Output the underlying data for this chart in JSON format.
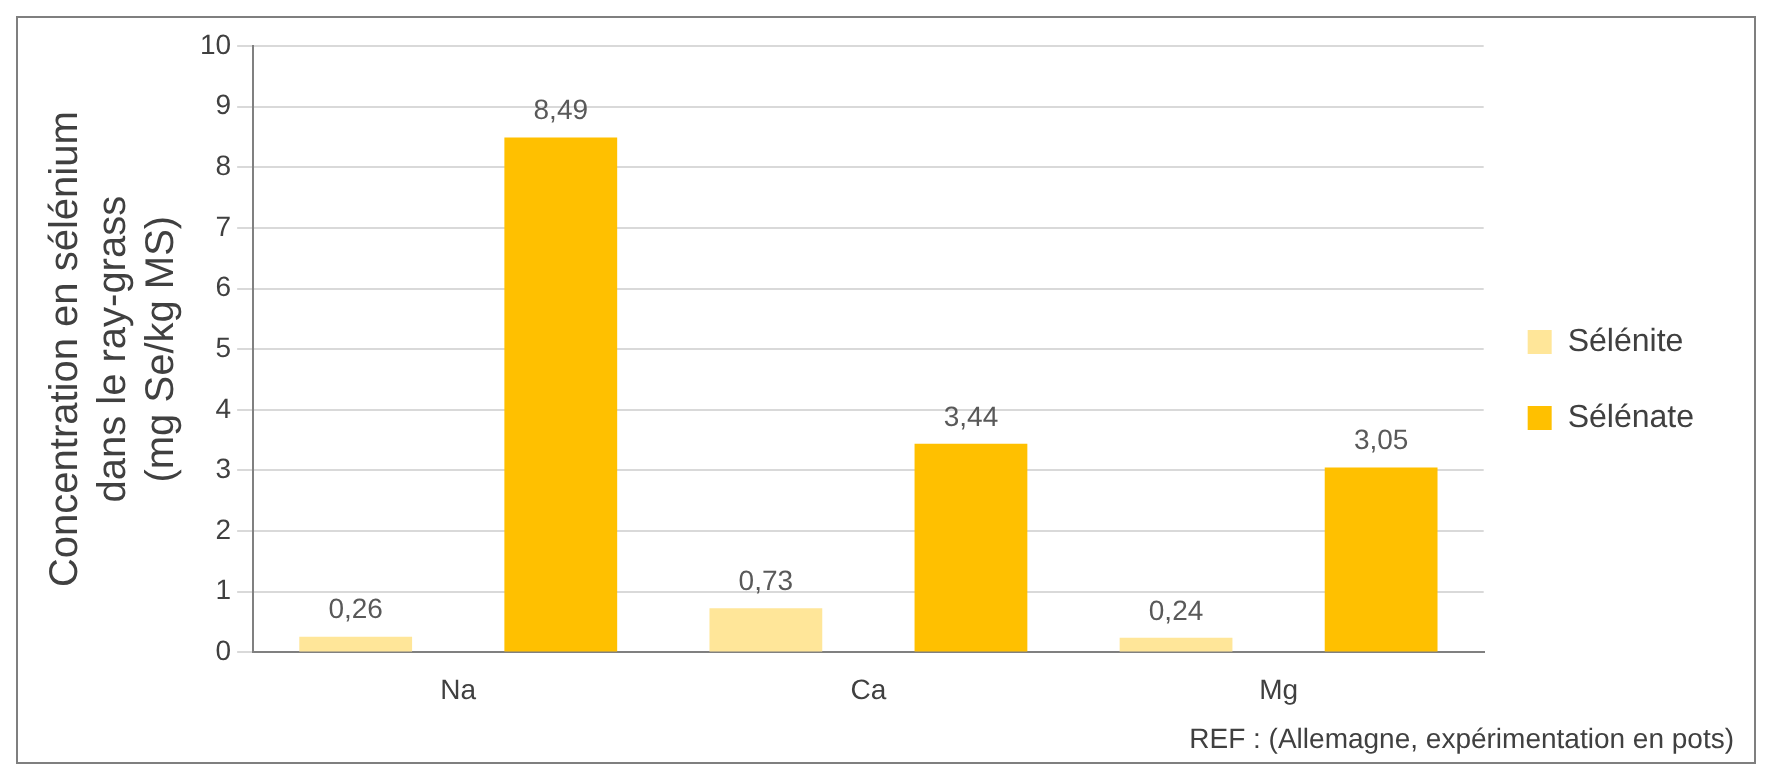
{
  "chart_data": {
    "type": "bar",
    "ylabel": "Concentration en sélénium\ndans le ray-grass\n(mg Se/kg MS)",
    "categories": [
      "Na",
      "Ca",
      "Mg"
    ],
    "series": [
      {
        "name": "Sélénite",
        "color": "#ffe699",
        "values": [
          0.26,
          0.73,
          0.24
        ],
        "value_labels": [
          "0,26",
          "0,73",
          "0,24"
        ]
      },
      {
        "name": "Sélénate",
        "color": "#ffc000",
        "values": [
          8.49,
          3.44,
          3.05
        ],
        "value_labels": [
          "8,49",
          "3,44",
          "3,05"
        ]
      }
    ],
    "ylim": [
      0,
      10
    ],
    "yticks": [
      0,
      1,
      2,
      3,
      4,
      5,
      6,
      7,
      8,
      9,
      10
    ],
    "grid": "y",
    "legend": "right",
    "annotations": [
      "REF : (Allemagne, expérimentation en pots)"
    ]
  }
}
